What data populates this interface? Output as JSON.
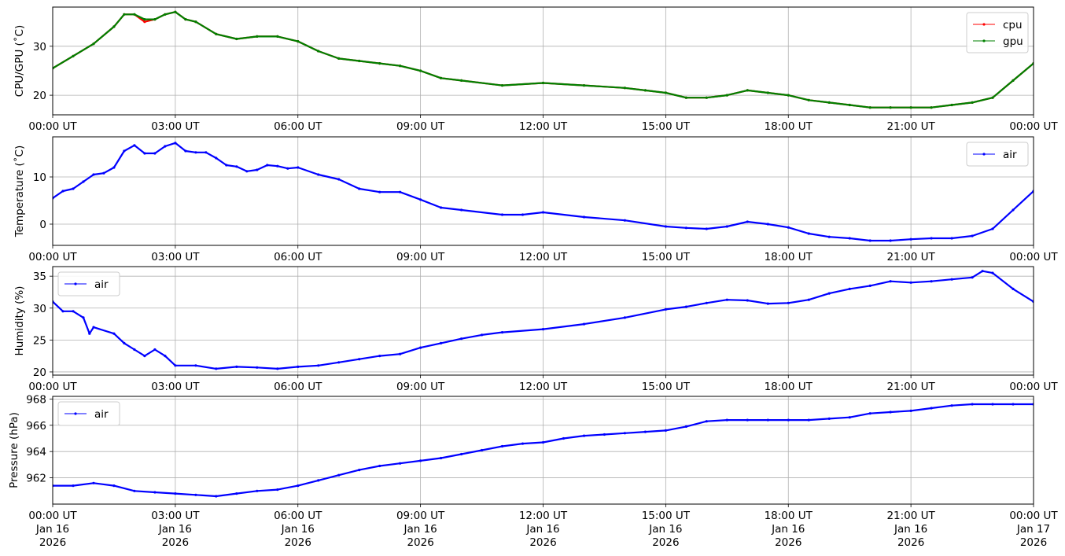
{
  "chart_data": [
    {
      "type": "line",
      "ylabel": "CPU/GPU (˚C)",
      "ylim": [
        16,
        38
      ],
      "yticks": [
        20,
        30
      ],
      "xticks": [
        "00:00 UT",
        "03:00 UT",
        "06:00 UT",
        "09:00 UT",
        "12:00 UT",
        "15:00 UT",
        "18:00 UT",
        "21:00 UT",
        "00:00 UT"
      ],
      "grid": true,
      "legend_position": "top-right",
      "x_hours": [
        0,
        0.5,
        1,
        1.5,
        1.75,
        2,
        2.25,
        2.5,
        2.75,
        3,
        3.25,
        3.5,
        4,
        4.5,
        5,
        5.5,
        6,
        6.5,
        7,
        7.5,
        8,
        8.5,
        9,
        9.5,
        10,
        11,
        12,
        13,
        14,
        14.5,
        15,
        15.5,
        16,
        16.5,
        17,
        17.5,
        18,
        18.5,
        19,
        19.5,
        20,
        20.5,
        21,
        21.5,
        22,
        22.5,
        23,
        23.5,
        24
      ],
      "series": [
        {
          "name": "cpu",
          "color": "#ff0000",
          "values": [
            25.5,
            28,
            30.5,
            34,
            36.5,
            36.5,
            35,
            35.5,
            36.5,
            37,
            35.5,
            35,
            32.5,
            31.5,
            32,
            32,
            31,
            29,
            27.5,
            27,
            26.5,
            26,
            25,
            23.5,
            23,
            22,
            22.5,
            22,
            21.5,
            21,
            20.5,
            19.5,
            19.5,
            20,
            21,
            20.5,
            20,
            19,
            18.5,
            18,
            17.5,
            17.5,
            17.5,
            17.5,
            18,
            18.5,
            19.5,
            23,
            26.5
          ]
        },
        {
          "name": "gpu",
          "color": "#008000",
          "values": [
            25.5,
            28,
            30.5,
            34,
            36.5,
            36.5,
            35.5,
            35.5,
            36.5,
            37,
            35.5,
            35,
            32.5,
            31.5,
            32,
            32,
            31,
            29,
            27.5,
            27,
            26.5,
            26,
            25,
            23.5,
            23,
            22,
            22.5,
            22,
            21.5,
            21,
            20.5,
            19.5,
            19.5,
            20,
            21,
            20.5,
            20,
            19,
            18.5,
            18,
            17.5,
            17.5,
            17.5,
            17.5,
            18,
            18.5,
            19.5,
            23,
            26.5
          ]
        }
      ]
    },
    {
      "type": "line",
      "ylabel": "Temperature (˚C)",
      "ylim": [
        -4.5,
        18.5
      ],
      "yticks": [
        0,
        10
      ],
      "xticks": [
        "00:00 UT",
        "03:00 UT",
        "06:00 UT",
        "09:00 UT",
        "12:00 UT",
        "15:00 UT",
        "18:00 UT",
        "21:00 UT",
        "00:00 UT"
      ],
      "grid": true,
      "legend_position": "top-right",
      "x_hours": [
        0,
        0.25,
        0.5,
        0.75,
        1,
        1.25,
        1.5,
        1.75,
        2,
        2.25,
        2.5,
        2.75,
        3,
        3.25,
        3.5,
        3.75,
        4,
        4.25,
        4.5,
        4.75,
        5,
        5.25,
        5.5,
        5.75,
        6,
        6.5,
        7,
        7.5,
        8,
        8.5,
        9,
        9.5,
        10,
        11,
        11.5,
        12,
        13,
        14,
        15,
        15.5,
        16,
        16.5,
        17,
        17.5,
        18,
        18.5,
        19,
        19.5,
        20,
        20.5,
        21,
        21.5,
        22,
        22.5,
        23,
        23.5,
        24
      ],
      "series": [
        {
          "name": "air",
          "color": "#0000ff",
          "values": [
            5.5,
            7,
            7.5,
            9,
            10.5,
            10.8,
            12,
            15.5,
            16.7,
            15,
            15,
            16.5,
            17.2,
            15.5,
            15.2,
            15.2,
            14,
            12.5,
            12.2,
            11.2,
            11.5,
            12.5,
            12.3,
            11.8,
            12,
            10.5,
            9.5,
            7.5,
            6.8,
            6.8,
            5.2,
            3.5,
            3,
            2,
            2,
            2.5,
            1.5,
            0.8,
            -0.5,
            -0.8,
            -1,
            -0.5,
            0.5,
            0,
            -0.7,
            -2,
            -2.7,
            -3,
            -3.5,
            -3.5,
            -3.2,
            -3,
            -3,
            -2.5,
            -1,
            3,
            7
          ]
        }
      ]
    },
    {
      "type": "line",
      "ylabel": "Humidity (%)",
      "ylim": [
        19.5,
        36.5
      ],
      "yticks": [
        20,
        25,
        30,
        35
      ],
      "xticks": [
        "00:00 UT",
        "03:00 UT",
        "06:00 UT",
        "09:00 UT",
        "12:00 UT",
        "15:00 UT",
        "18:00 UT",
        "21:00 UT",
        "00:00 UT"
      ],
      "grid": true,
      "legend_position": "top-left",
      "x_hours": [
        0,
        0.25,
        0.5,
        0.75,
        0.9,
        1,
        1.5,
        1.75,
        2,
        2.25,
        2.5,
        2.75,
        3,
        3.5,
        4,
        4.5,
        5,
        5.5,
        6,
        6.5,
        7,
        7.5,
        8,
        8.5,
        9,
        9.5,
        10,
        10.5,
        11,
        12,
        13,
        14,
        15,
        15.5,
        16,
        16.5,
        17,
        17.5,
        18,
        18.5,
        19,
        19.5,
        20,
        20.5,
        21,
        21.5,
        22,
        22.5,
        22.75,
        23,
        23.5,
        24
      ],
      "series": [
        {
          "name": "air",
          "color": "#0000ff",
          "values": [
            31,
            29.5,
            29.5,
            28.5,
            26,
            27,
            26,
            24.5,
            23.5,
            22.5,
            23.5,
            22.5,
            21,
            21,
            20.5,
            20.8,
            20.7,
            20.5,
            20.8,
            21,
            21.5,
            22,
            22.5,
            22.8,
            23.8,
            24.5,
            25.2,
            25.8,
            26.2,
            26.7,
            27.5,
            28.5,
            29.8,
            30.2,
            30.8,
            31.3,
            31.2,
            30.7,
            30.8,
            31.3,
            32.3,
            33,
            33.5,
            34.2,
            34,
            34.2,
            34.5,
            34.8,
            35.8,
            35.5,
            33,
            31
          ]
        }
      ]
    },
    {
      "type": "line",
      "ylabel": "Pressure (hPa)",
      "ylim": [
        960,
        968.2
      ],
      "yticks": [
        962,
        964,
        966,
        968
      ],
      "xticks": [
        "00:00 UT",
        "03:00 UT",
        "06:00 UT",
        "09:00 UT",
        "12:00 UT",
        "15:00 UT",
        "18:00 UT",
        "21:00 UT",
        "00:00 UT"
      ],
      "xdates": [
        "Jan 16",
        "Jan 16",
        "Jan 16",
        "Jan 16",
        "Jan 16",
        "Jan 16",
        "Jan 16",
        "Jan 16",
        "Jan 17"
      ],
      "xyears": [
        "2026",
        "2026",
        "2026",
        "2026",
        "2026",
        "2026",
        "2026",
        "2026",
        "2026"
      ],
      "grid": true,
      "legend_position": "top-left",
      "x_hours": [
        0,
        0.5,
        1,
        1.5,
        2,
        2.5,
        3,
        3.5,
        4,
        4.5,
        5,
        5.5,
        6,
        6.5,
        7,
        7.5,
        8,
        8.5,
        9,
        9.5,
        10,
        10.5,
        11,
        11.5,
        12,
        12.5,
        13,
        13.5,
        14,
        14.5,
        15,
        15.5,
        16,
        16.5,
        17,
        17.5,
        18,
        18.5,
        19,
        19.5,
        20,
        20.5,
        21,
        21.5,
        22,
        22.5,
        23,
        23.5,
        24
      ],
      "series": [
        {
          "name": "air",
          "color": "#0000ff",
          "values": [
            961.4,
            961.4,
            961.6,
            961.4,
            961,
            960.9,
            960.8,
            960.7,
            960.6,
            960.8,
            961,
            961.1,
            961.4,
            961.8,
            962.2,
            962.6,
            962.9,
            963.1,
            963.3,
            963.5,
            963.8,
            964.1,
            964.4,
            964.6,
            964.7,
            965,
            965.2,
            965.3,
            965.4,
            965.5,
            965.6,
            965.9,
            966.3,
            966.4,
            966.4,
            966.4,
            966.4,
            966.4,
            966.5,
            966.6,
            966.9,
            967,
            967.1,
            967.3,
            967.5,
            967.6,
            967.6,
            967.6,
            967.6
          ]
        }
      ]
    }
  ]
}
